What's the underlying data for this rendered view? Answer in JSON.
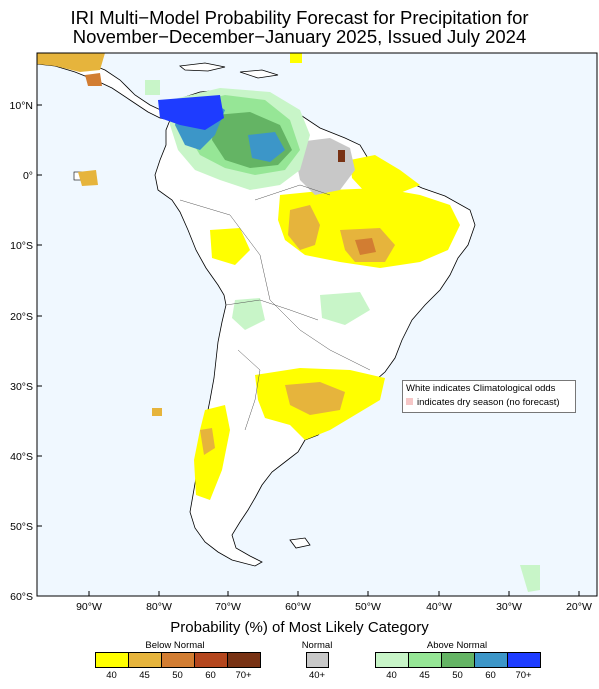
{
  "title_line1": "IRI Multi−Model Probability Forecast for Precipitation for",
  "title_line2": "November−December−January 2025, Issued July 2024",
  "lat_labels": [
    "10°N",
    "0°",
    "10°S",
    "20°S",
    "30°S",
    "40°S",
    "50°S",
    "60°S"
  ],
  "lon_labels": [
    "90°W",
    "80°W",
    "70°W",
    "60°W",
    "50°W",
    "40°W",
    "30°W",
    "20°W"
  ],
  "legend": {
    "title": "Probability (%) of Most Likely Category",
    "below_normal": {
      "label": "Below Normal",
      "values": [
        "40",
        "45",
        "50",
        "60",
        "70+"
      ],
      "colors": [
        "#ffff00",
        "#e6b43c",
        "#d27d32",
        "#b4461e",
        "#783214"
      ]
    },
    "normal": {
      "label": "Normal",
      "values": [
        "40+"
      ],
      "colors": [
        "#c8c8c8"
      ]
    },
    "above_normal": {
      "label": "Above Normal",
      "values": [
        "40",
        "45",
        "50",
        "60",
        "70+"
      ],
      "colors": [
        "#c8f5c8",
        "#96e696",
        "#64b464",
        "#3c96c8",
        "#1e3cff"
      ]
    }
  },
  "note": {
    "line1": "White indicates Climatological odds",
    "line2": "indicates dry season (no forecast)",
    "dry_color": "#f6c7c7"
  },
  "colors": {
    "ocean": "#f0f8ff",
    "land": "#ffffff"
  }
}
